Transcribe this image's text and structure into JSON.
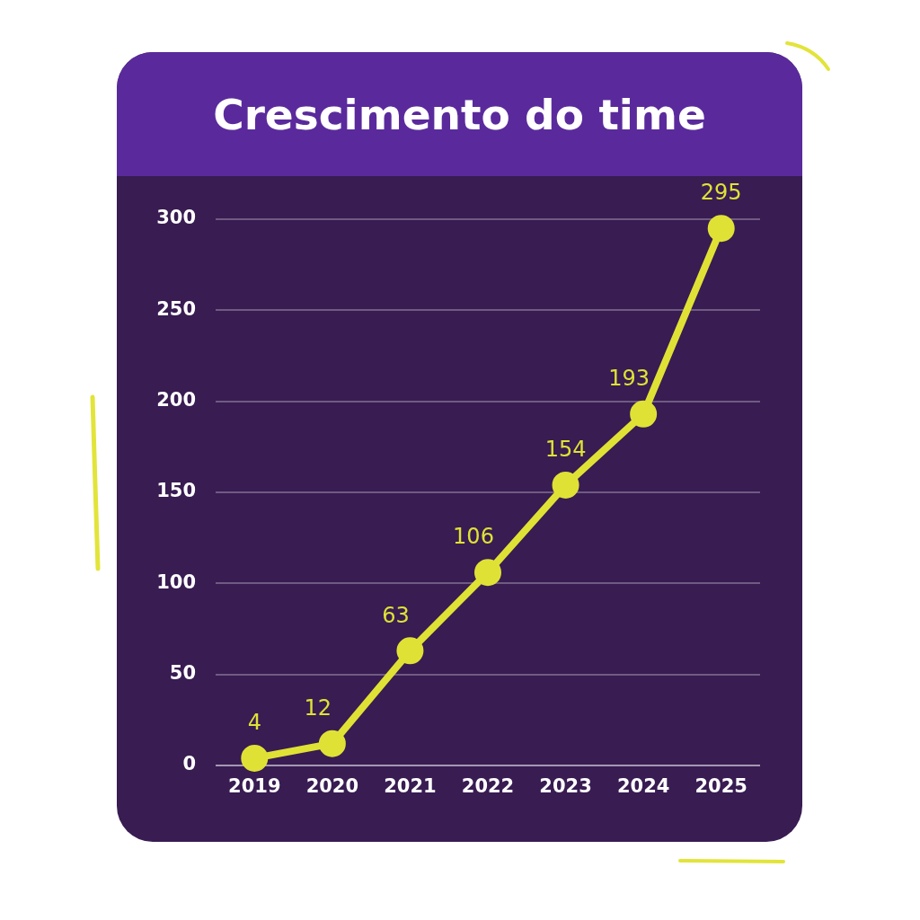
{
  "chart_data": {
    "type": "line",
    "title": "Crescimento do time",
    "categories": [
      "2019",
      "2020",
      "2021",
      "2022",
      "2023",
      "2024",
      "2025"
    ],
    "series": [
      {
        "color": "#dfe235",
        "values": [
          4,
          12,
          63,
          106,
          154,
          193,
          295
        ]
      }
    ],
    "ylim": [
      0,
      300
    ],
    "yticks": [
      0,
      50,
      100,
      150,
      200,
      250,
      300
    ],
    "grid": "y",
    "marker": "circle",
    "line_style": "solid",
    "data_labels": true
  }
}
